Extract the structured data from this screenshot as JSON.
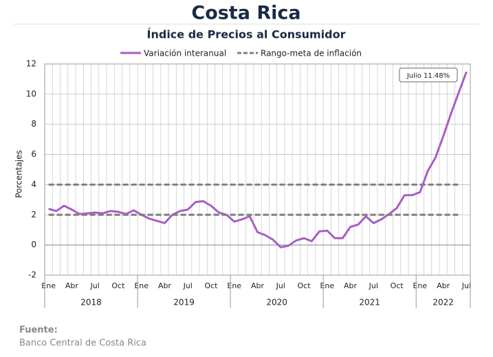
{
  "chart_data": {
    "type": "line",
    "title": "Costa Rica",
    "subtitle": "Índice de Precios al Consumidor",
    "ylabel": "Porcentajes",
    "categories": [
      "Ene",
      null,
      null,
      "Abr",
      null,
      null,
      "Jul",
      null,
      null,
      "Oct",
      null,
      null,
      "Ene",
      null,
      null,
      "Abr",
      null,
      null,
      "Jul",
      null,
      null,
      "Oct",
      null,
      null,
      "Ene",
      null,
      null,
      "Abr",
      null,
      null,
      "Jul",
      null,
      null,
      "Oct",
      null,
      null,
      "Ene",
      null,
      null,
      "Abr",
      null,
      null,
      "Jul",
      null,
      null,
      "Oct",
      null,
      null,
      "Ene",
      null,
      null,
      "Abr",
      null,
      null,
      "Jul"
    ],
    "years": [
      {
        "label": "2018",
        "months": 12
      },
      {
        "label": "2019",
        "months": 12
      },
      {
        "label": "2020",
        "months": 12
      },
      {
        "label": "2021",
        "months": 12
      },
      {
        "label": "2022",
        "months": 7
      }
    ],
    "series": [
      {
        "name": "Variación interanual",
        "color": "#a65ec4",
        "values": [
          2.4,
          2.25,
          2.6,
          2.35,
          2.05,
          2.1,
          2.15,
          2.1,
          2.25,
          2.2,
          2.05,
          2.3,
          2.0,
          1.75,
          1.6,
          1.45,
          2.0,
          2.25,
          2.35,
          2.85,
          2.9,
          2.6,
          2.15,
          2.0,
          1.55,
          1.7,
          1.9,
          0.85,
          0.65,
          0.35,
          -0.15,
          -0.05,
          0.3,
          0.45,
          0.25,
          0.9,
          0.95,
          0.45,
          0.45,
          1.2,
          1.35,
          1.9,
          1.45,
          1.7,
          2.05,
          2.45,
          3.3,
          3.3,
          3.5,
          4.9,
          5.8,
          7.2,
          8.7,
          10.1,
          11.48
        ]
      },
      {
        "name": "Rango-meta de inflación",
        "color": "#7f7f7f",
        "dashed": true,
        "levels": [
          2,
          4
        ]
      }
    ],
    "annotation": "Julio 11.48%",
    "ylim": [
      -2,
      12
    ],
    "yticks": [
      -2,
      0,
      2,
      4,
      6,
      8,
      10,
      12
    ],
    "grid": true,
    "legend": "top"
  },
  "source": {
    "label": "Fuente:",
    "text": "Banco Central de Costa Rica"
  }
}
